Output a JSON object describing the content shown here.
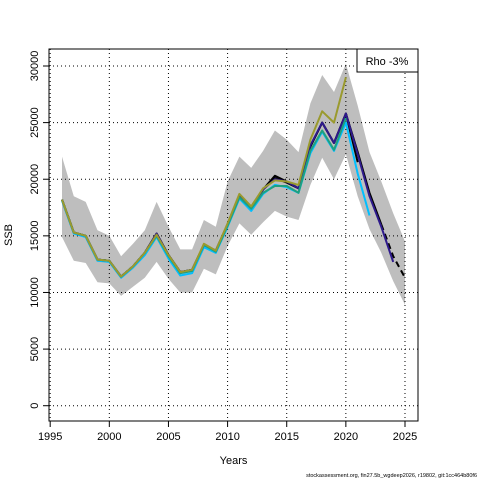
{
  "chart_data": {
    "type": "line",
    "xlabel": "Years",
    "ylabel": "SSB",
    "xlim": [
      1994.9,
      2026.1
    ],
    "ylim": [
      -1350,
      31500
    ],
    "x_ticks": [
      1995,
      2000,
      2005,
      2010,
      2015,
      2020,
      2025
    ],
    "y_ticks": [
      0,
      5000,
      10000,
      15000,
      20000,
      25000,
      30000
    ],
    "grid": true,
    "legend": {
      "position": "top-right",
      "text": "Rho -3%"
    },
    "footer": "stockassessment.org, fin27.5b_wgdeep2026, r19802, git:1cc464b80f6",
    "band": {
      "color": "#bebebe",
      "x": [
        1996,
        1997,
        1998,
        1999,
        2000,
        2001,
        2002,
        2003,
        2004,
        2005,
        2006,
        2007,
        2008,
        2009,
        2010,
        2011,
        2012,
        2013,
        2014,
        2015,
        2016,
        2017,
        2018,
        2019,
        2020,
        2021,
        2022,
        2023,
        2024,
        2025
      ],
      "upper": [
        22000,
        18500,
        18000,
        15500,
        15000,
        13200,
        14300,
        15500,
        18000,
        15800,
        13800,
        13800,
        16400,
        15800,
        19800,
        22000,
        21000,
        22500,
        24300,
        23500,
        22400,
        26700,
        29200,
        27700,
        30200,
        26500,
        22400,
        19800,
        17000,
        14500
      ],
      "lower": [
        14900,
        12800,
        12600,
        10900,
        10800,
        9700,
        10500,
        11300,
        12700,
        11200,
        10000,
        10000,
        12100,
        11600,
        14100,
        16100,
        15100,
        16200,
        17200,
        16700,
        16400,
        19500,
        21900,
        20000,
        22200,
        18500,
        15600,
        13500,
        11000,
        8900
      ]
    },
    "series": [
      {
        "color": "#000000",
        "dashed": false,
        "x": [
          1996,
          1997,
          1998,
          1999,
          2000,
          2001,
          2002,
          2003,
          2004,
          2005,
          2006,
          2007,
          2008,
          2009,
          2010,
          2011,
          2012,
          2013,
          2014,
          2015,
          2016,
          2017,
          2018,
          2019,
          2020,
          2021,
          2022,
          2023
        ],
        "values": [
          18200,
          15300,
          15000,
          12900,
          12800,
          11400,
          12300,
          13500,
          15200,
          13300,
          11800,
          12000,
          14200,
          13700,
          16000,
          18600,
          17500,
          19100,
          20300,
          19800,
          19200,
          22900,
          25000,
          23200,
          25800,
          22400,
          18800,
          16000
        ]
      },
      {
        "color": "#000000",
        "dashed": true,
        "x": [
          2023,
          2024,
          2025
        ],
        "values": [
          16000,
          13200,
          11300
        ]
      },
      {
        "color": "#000000",
        "dashed": false,
        "x": [
          1996,
          1997,
          1998,
          1999,
          2000,
          2001,
          2002,
          2003,
          2004,
          2005,
          2006,
          2007,
          2008,
          2009,
          2010,
          2011,
          2012,
          2013,
          2014,
          2015,
          2016,
          2017,
          2018,
          2019,
          2020,
          2021
        ],
        "values": [
          18200,
          15300,
          15000,
          12900,
          12800,
          11400,
          12300,
          13500,
          15200,
          13300,
          11800,
          12000,
          14200,
          13700,
          16000,
          18600,
          17500,
          19100,
          20100,
          19700,
          19200,
          22900,
          25000,
          23200,
          25800,
          21500
        ]
      },
      {
        "color": "#00bfff",
        "dashed": false,
        "x": [
          1996,
          1997,
          1998,
          1999,
          2000,
          2001,
          2002,
          2003,
          2004,
          2005,
          2006,
          2007,
          2008,
          2009,
          2010,
          2011,
          2012,
          2013,
          2014,
          2015,
          2016,
          2017,
          2018,
          2019,
          2020,
          2021,
          2022
        ],
        "values": [
          18100,
          15200,
          14900,
          12800,
          12700,
          11300,
          12200,
          13300,
          14900,
          13000,
          11500,
          11700,
          14000,
          13500,
          15800,
          18300,
          17200,
          18700,
          19500,
          19300,
          18800,
          22300,
          24200,
          22500,
          25000,
          20500,
          16800
        ]
      },
      {
        "color": "#2e1a8b",
        "dashed": false,
        "x": [
          1996,
          1997,
          1998,
          1999,
          2000,
          2001,
          2002,
          2003,
          2004,
          2005,
          2006,
          2007,
          2008,
          2009,
          2010,
          2011,
          2012,
          2013,
          2014,
          2015,
          2016,
          2017,
          2018,
          2019,
          2020,
          2021,
          2022,
          2023,
          2024
        ],
        "values": [
          18200,
          15300,
          15000,
          12900,
          12800,
          11400,
          12300,
          13500,
          15200,
          13300,
          11800,
          12000,
          14200,
          13700,
          16000,
          18600,
          17500,
          19100,
          20000,
          19800,
          19200,
          23000,
          25000,
          23200,
          25800,
          22200,
          18500,
          15800,
          12700
        ]
      },
      {
        "color": "#1ea080",
        "dashed": false,
        "x": [
          1996,
          1997,
          1998,
          1999,
          2000,
          2001,
          2002,
          2003,
          2004,
          2005,
          2006,
          2007,
          2008,
          2009,
          2010,
          2011,
          2012,
          2013,
          2014,
          2015,
          2016,
          2017,
          2018,
          2019,
          2020
        ],
        "values": [
          18200,
          15300,
          15000,
          12900,
          12800,
          11400,
          12300,
          13500,
          15000,
          13200,
          11700,
          11900,
          14200,
          13600,
          15900,
          18400,
          17400,
          18800,
          19400,
          19400,
          18800,
          22500,
          24300,
          22600,
          25400
        ]
      },
      {
        "color": "#9a9a2e",
        "dashed": false,
        "x": [
          1996,
          1997,
          1998,
          1999,
          2000,
          2001,
          2002,
          2003,
          2004,
          2005,
          2006,
          2007,
          2008,
          2009,
          2010,
          2011,
          2012,
          2013,
          2014,
          2015,
          2016,
          2017,
          2018,
          2019,
          2020
        ],
        "values": [
          18200,
          15300,
          15000,
          12900,
          12800,
          11400,
          12300,
          13500,
          15100,
          13300,
          11800,
          12000,
          14300,
          13700,
          16100,
          18700,
          17600,
          19200,
          19900,
          19800,
          19500,
          23500,
          26000,
          25000,
          29000
        ]
      }
    ]
  }
}
